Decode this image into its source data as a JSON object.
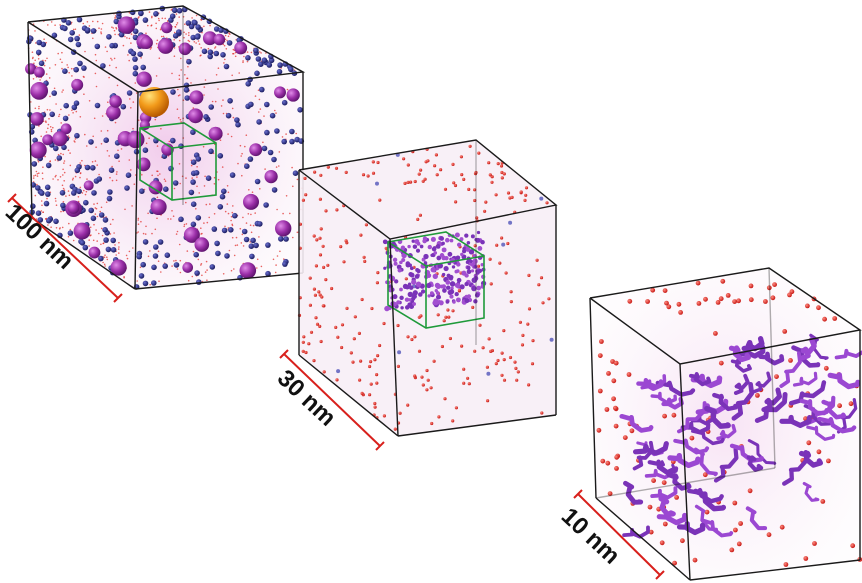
{
  "scale_labels": {
    "large": "100 nm",
    "medium": "30 nm",
    "small": "10 nm"
  },
  "colors": {
    "background": "#ffffff",
    "cube_edge": "#1a1a1a",
    "zoom_box": "#1f9a3a",
    "scale_bar": "#d8201c",
    "large_molecule": "#9b2fa8",
    "small_molecule": "#22237a",
    "ion": "#e0231f",
    "protein": "#7a33b8",
    "highlight_sphere": "#f29a1a",
    "haze": "#f3d7ee"
  },
  "icons": {
    "large_molecule": "purple-sphere",
    "small_molecule": "navy-bead",
    "ion": "red-dot",
    "protein": "ribbon-helix",
    "highlight": "orange-sphere"
  }
}
